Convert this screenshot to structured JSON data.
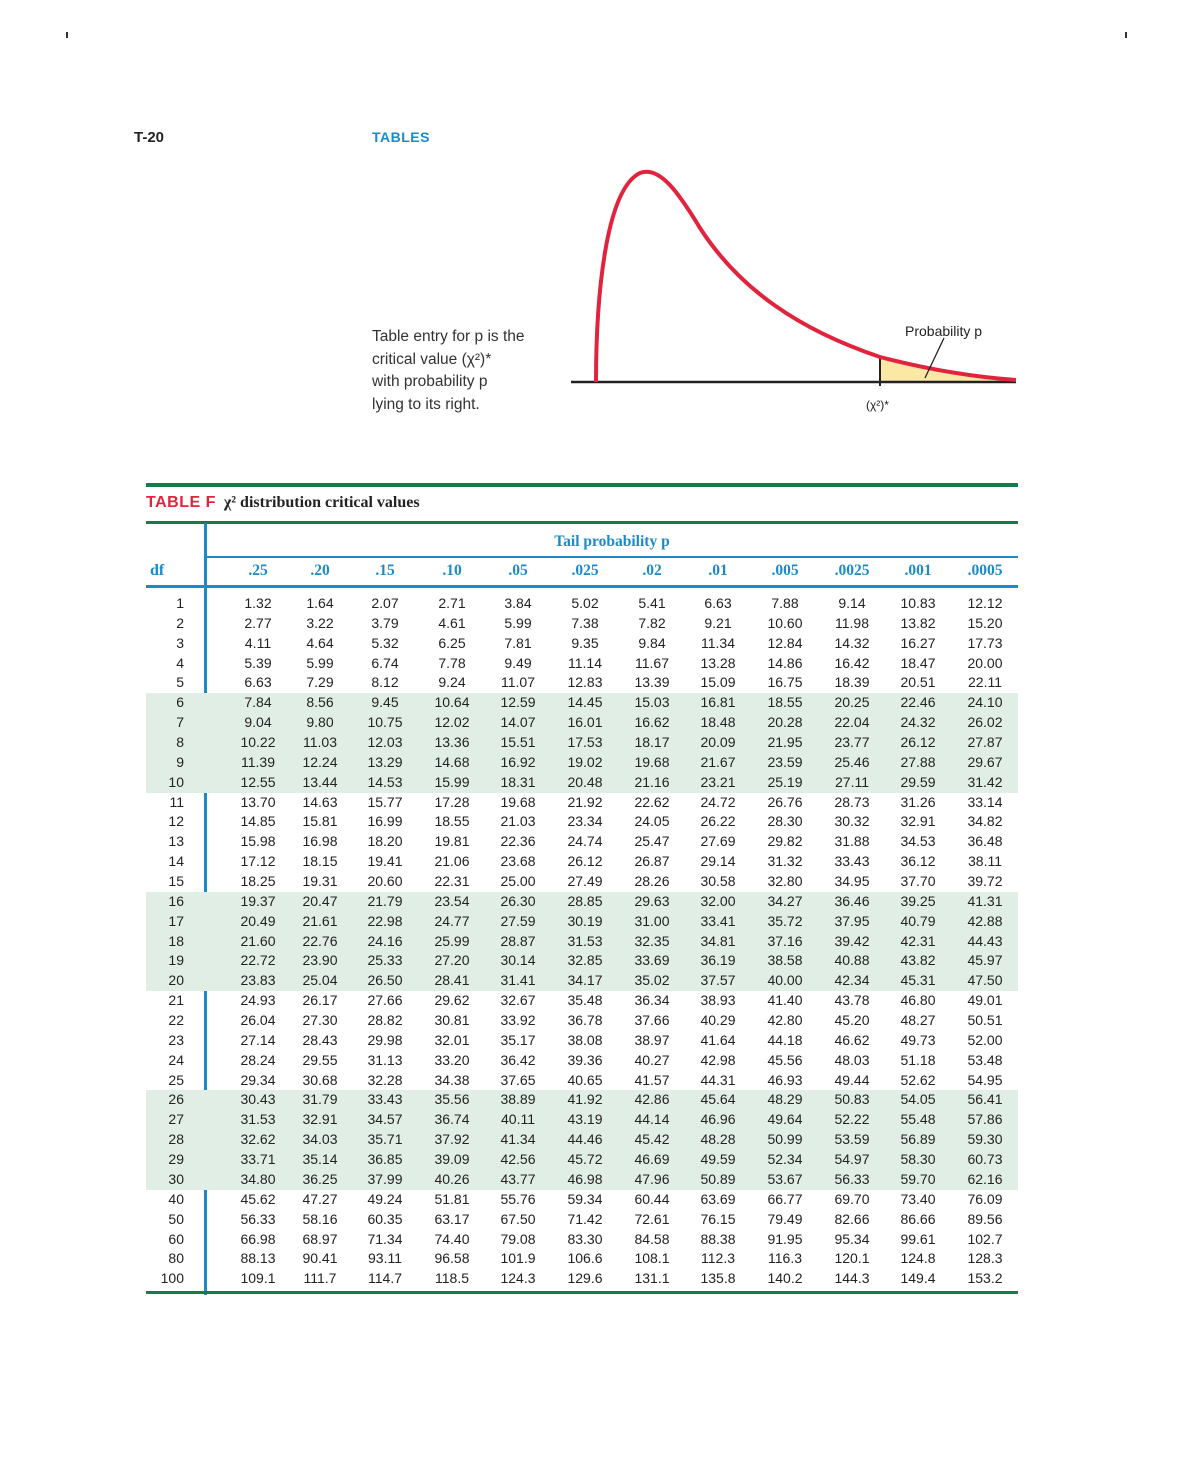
{
  "page": {
    "number": "T-20",
    "section": "TABLES"
  },
  "figure": {
    "explanation_lines": [
      "Table entry for p is the",
      "critical value (χ²)*",
      "with probability p",
      "lying to its right."
    ],
    "probability_label": "Probability p",
    "critical_label": "(χ²)*",
    "colors": {
      "curve": "#e2233d",
      "tail_fill": "#fbe7a6",
      "axis": "#222222"
    }
  },
  "table": {
    "label": "TABLE F",
    "title": "χ² distribution critical values",
    "tail_header": "Tail probability p",
    "df_header": "df",
    "columns": [
      ".25",
      ".20",
      ".15",
      ".10",
      ".05",
      ".025",
      ".02",
      ".01",
      ".005",
      ".0025",
      ".001",
      ".0005"
    ],
    "rows": [
      {
        "df": "1",
        "v": [
          "1.32",
          "1.64",
          "2.07",
          "2.71",
          "3.84",
          "5.02",
          "5.41",
          "6.63",
          "7.88",
          "9.14",
          "10.83",
          "12.12"
        ]
      },
      {
        "df": "2",
        "v": [
          "2.77",
          "3.22",
          "3.79",
          "4.61",
          "5.99",
          "7.38",
          "7.82",
          "9.21",
          "10.60",
          "11.98",
          "13.82",
          "15.20"
        ]
      },
      {
        "df": "3",
        "v": [
          "4.11",
          "4.64",
          "5.32",
          "6.25",
          "7.81",
          "9.35",
          "9.84",
          "11.34",
          "12.84",
          "14.32",
          "16.27",
          "17.73"
        ]
      },
      {
        "df": "4",
        "v": [
          "5.39",
          "5.99",
          "6.74",
          "7.78",
          "9.49",
          "11.14",
          "11.67",
          "13.28",
          "14.86",
          "16.42",
          "18.47",
          "20.00"
        ]
      },
      {
        "df": "5",
        "v": [
          "6.63",
          "7.29",
          "8.12",
          "9.24",
          "11.07",
          "12.83",
          "13.39",
          "15.09",
          "16.75",
          "18.39",
          "20.51",
          "22.11"
        ]
      },
      {
        "df": "6",
        "v": [
          "7.84",
          "8.56",
          "9.45",
          "10.64",
          "12.59",
          "14.45",
          "15.03",
          "16.81",
          "18.55",
          "20.25",
          "22.46",
          "24.10"
        ]
      },
      {
        "df": "7",
        "v": [
          "9.04",
          "9.80",
          "10.75",
          "12.02",
          "14.07",
          "16.01",
          "16.62",
          "18.48",
          "20.28",
          "22.04",
          "24.32",
          "26.02"
        ]
      },
      {
        "df": "8",
        "v": [
          "10.22",
          "11.03",
          "12.03",
          "13.36",
          "15.51",
          "17.53",
          "18.17",
          "20.09",
          "21.95",
          "23.77",
          "26.12",
          "27.87"
        ]
      },
      {
        "df": "9",
        "v": [
          "11.39",
          "12.24",
          "13.29",
          "14.68",
          "16.92",
          "19.02",
          "19.68",
          "21.67",
          "23.59",
          "25.46",
          "27.88",
          "29.67"
        ]
      },
      {
        "df": "10",
        "v": [
          "12.55",
          "13.44",
          "14.53",
          "15.99",
          "18.31",
          "20.48",
          "21.16",
          "23.21",
          "25.19",
          "27.11",
          "29.59",
          "31.42"
        ]
      },
      {
        "df": "11",
        "v": [
          "13.70",
          "14.63",
          "15.77",
          "17.28",
          "19.68",
          "21.92",
          "22.62",
          "24.72",
          "26.76",
          "28.73",
          "31.26",
          "33.14"
        ]
      },
      {
        "df": "12",
        "v": [
          "14.85",
          "15.81",
          "16.99",
          "18.55",
          "21.03",
          "23.34",
          "24.05",
          "26.22",
          "28.30",
          "30.32",
          "32.91",
          "34.82"
        ]
      },
      {
        "df": "13",
        "v": [
          "15.98",
          "16.98",
          "18.20",
          "19.81",
          "22.36",
          "24.74",
          "25.47",
          "27.69",
          "29.82",
          "31.88",
          "34.53",
          "36.48"
        ]
      },
      {
        "df": "14",
        "v": [
          "17.12",
          "18.15",
          "19.41",
          "21.06",
          "23.68",
          "26.12",
          "26.87",
          "29.14",
          "31.32",
          "33.43",
          "36.12",
          "38.11"
        ]
      },
      {
        "df": "15",
        "v": [
          "18.25",
          "19.31",
          "20.60",
          "22.31",
          "25.00",
          "27.49",
          "28.26",
          "30.58",
          "32.80",
          "34.95",
          "37.70",
          "39.72"
        ]
      },
      {
        "df": "16",
        "v": [
          "19.37",
          "20.47",
          "21.79",
          "23.54",
          "26.30",
          "28.85",
          "29.63",
          "32.00",
          "34.27",
          "36.46",
          "39.25",
          "41.31"
        ]
      },
      {
        "df": "17",
        "v": [
          "20.49",
          "21.61",
          "22.98",
          "24.77",
          "27.59",
          "30.19",
          "31.00",
          "33.41",
          "35.72",
          "37.95",
          "40.79",
          "42.88"
        ]
      },
      {
        "df": "18",
        "v": [
          "21.60",
          "22.76",
          "24.16",
          "25.99",
          "28.87",
          "31.53",
          "32.35",
          "34.81",
          "37.16",
          "39.42",
          "42.31",
          "44.43"
        ]
      },
      {
        "df": "19",
        "v": [
          "22.72",
          "23.90",
          "25.33",
          "27.20",
          "30.14",
          "32.85",
          "33.69",
          "36.19",
          "38.58",
          "40.88",
          "43.82",
          "45.97"
        ]
      },
      {
        "df": "20",
        "v": [
          "23.83",
          "25.04",
          "26.50",
          "28.41",
          "31.41",
          "34.17",
          "35.02",
          "37.57",
          "40.00",
          "42.34",
          "45.31",
          "47.50"
        ]
      },
      {
        "df": "21",
        "v": [
          "24.93",
          "26.17",
          "27.66",
          "29.62",
          "32.67",
          "35.48",
          "36.34",
          "38.93",
          "41.40",
          "43.78",
          "46.80",
          "49.01"
        ]
      },
      {
        "df": "22",
        "v": [
          "26.04",
          "27.30",
          "28.82",
          "30.81",
          "33.92",
          "36.78",
          "37.66",
          "40.29",
          "42.80",
          "45.20",
          "48.27",
          "50.51"
        ]
      },
      {
        "df": "23",
        "v": [
          "27.14",
          "28.43",
          "29.98",
          "32.01",
          "35.17",
          "38.08",
          "38.97",
          "41.64",
          "44.18",
          "46.62",
          "49.73",
          "52.00"
        ]
      },
      {
        "df": "24",
        "v": [
          "28.24",
          "29.55",
          "31.13",
          "33.20",
          "36.42",
          "39.36",
          "40.27",
          "42.98",
          "45.56",
          "48.03",
          "51.18",
          "53.48"
        ]
      },
      {
        "df": "25",
        "v": [
          "29.34",
          "30.68",
          "32.28",
          "34.38",
          "37.65",
          "40.65",
          "41.57",
          "44.31",
          "46.93",
          "49.44",
          "52.62",
          "54.95"
        ]
      },
      {
        "df": "26",
        "v": [
          "30.43",
          "31.79",
          "33.43",
          "35.56",
          "38.89",
          "41.92",
          "42.86",
          "45.64",
          "48.29",
          "50.83",
          "54.05",
          "56.41"
        ]
      },
      {
        "df": "27",
        "v": [
          "31.53",
          "32.91",
          "34.57",
          "36.74",
          "40.11",
          "43.19",
          "44.14",
          "46.96",
          "49.64",
          "52.22",
          "55.48",
          "57.86"
        ]
      },
      {
        "df": "28",
        "v": [
          "32.62",
          "34.03",
          "35.71",
          "37.92",
          "41.34",
          "44.46",
          "45.42",
          "48.28",
          "50.99",
          "53.59",
          "56.89",
          "59.30"
        ]
      },
      {
        "df": "29",
        "v": [
          "33.71",
          "35.14",
          "36.85",
          "39.09",
          "42.56",
          "45.72",
          "46.69",
          "49.59",
          "52.34",
          "54.97",
          "58.30",
          "60.73"
        ]
      },
      {
        "df": "30",
        "v": [
          "34.80",
          "36.25",
          "37.99",
          "40.26",
          "43.77",
          "46.98",
          "47.96",
          "50.89",
          "53.67",
          "56.33",
          "59.70",
          "62.16"
        ]
      },
      {
        "df": "40",
        "v": [
          "45.62",
          "47.27",
          "49.24",
          "51.81",
          "55.76",
          "59.34",
          "60.44",
          "63.69",
          "66.77",
          "69.70",
          "73.40",
          "76.09"
        ]
      },
      {
        "df": "50",
        "v": [
          "56.33",
          "58.16",
          "60.35",
          "63.17",
          "67.50",
          "71.42",
          "72.61",
          "76.15",
          "79.49",
          "82.66",
          "86.66",
          "89.56"
        ]
      },
      {
        "df": "60",
        "v": [
          "66.98",
          "68.97",
          "71.34",
          "74.40",
          "79.08",
          "83.30",
          "84.58",
          "88.38",
          "91.95",
          "95.34",
          "99.61",
          "102.7"
        ]
      },
      {
        "df": "80",
        "v": [
          "88.13",
          "90.41",
          "93.11",
          "96.58",
          "101.9",
          "106.6",
          "108.1",
          "112.3",
          "116.3",
          "120.1",
          "124.8",
          "128.3"
        ]
      },
      {
        "df": "100",
        "v": [
          "109.1",
          "111.7",
          "114.7",
          "118.5",
          "124.3",
          "129.6",
          "131.1",
          "135.8",
          "140.2",
          "144.3",
          "149.4",
          "153.2"
        ]
      }
    ],
    "shaded_df": [
      "6",
      "7",
      "8",
      "9",
      "10",
      "16",
      "17",
      "18",
      "19",
      "20",
      "26",
      "27",
      "28",
      "29",
      "30"
    ],
    "colors": {
      "label": "#e2233d",
      "header": "#1a8ac9",
      "rule": "#167a4a",
      "shade": "#e1eee5"
    }
  }
}
